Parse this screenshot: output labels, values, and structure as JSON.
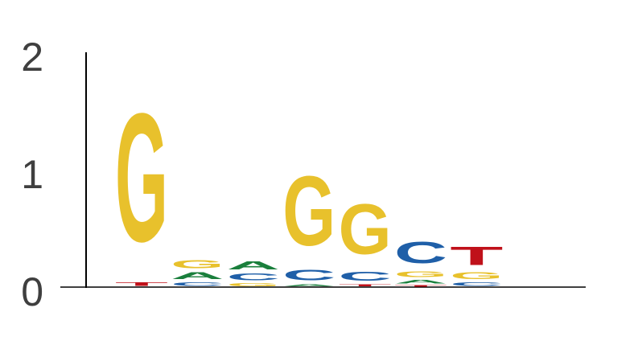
{
  "chart_data": {
    "type": "sequence-logo",
    "title": "",
    "xlabel": "",
    "ylabel": "",
    "ylim": [
      0,
      2
    ],
    "yticks": [
      0,
      1,
      2
    ],
    "grid": false,
    "colors": {
      "A": "#1a7f3c",
      "C": "#1f5fa8",
      "G": "#e8c12c",
      "T": "#c0111a"
    },
    "positions": [
      {
        "position": 1,
        "letters": [
          {
            "letter": "T",
            "height": 0.05
          },
          {
            "letter": "G",
            "height": 1.75
          }
        ]
      },
      {
        "position": 2,
        "letters": [
          {
            "letter": "C",
            "height": 0.05
          },
          {
            "letter": "A",
            "height": 0.09
          },
          {
            "letter": "G",
            "height": 0.11
          }
        ]
      },
      {
        "position": 3,
        "letters": [
          {
            "letter": "G",
            "height": 0.04
          },
          {
            "letter": "C",
            "height": 0.09
          },
          {
            "letter": "A",
            "height": 0.11
          }
        ]
      },
      {
        "position": 4,
        "letters": [
          {
            "letter": "A",
            "height": 0.03
          },
          {
            "letter": "C",
            "height": 0.14
          },
          {
            "letter": "G",
            "height": 0.95
          }
        ]
      },
      {
        "position": 5,
        "letters": [
          {
            "letter": "T",
            "height": 0.03
          },
          {
            "letter": "C",
            "height": 0.12
          },
          {
            "letter": "G",
            "height": 0.68
          }
        ]
      },
      {
        "position": 6,
        "letters": [
          {
            "letter": "T",
            "height": 0.02
          },
          {
            "letter": "A",
            "height": 0.05
          },
          {
            "letter": "G",
            "height": 0.08
          },
          {
            "letter": "C",
            "height": 0.29
          }
        ]
      },
      {
        "position": 7,
        "letters": [
          {
            "letter": "C",
            "height": 0.05
          },
          {
            "letter": "G",
            "height": 0.09
          },
          {
            "letter": "T",
            "height": 0.25
          }
        ]
      }
    ]
  }
}
